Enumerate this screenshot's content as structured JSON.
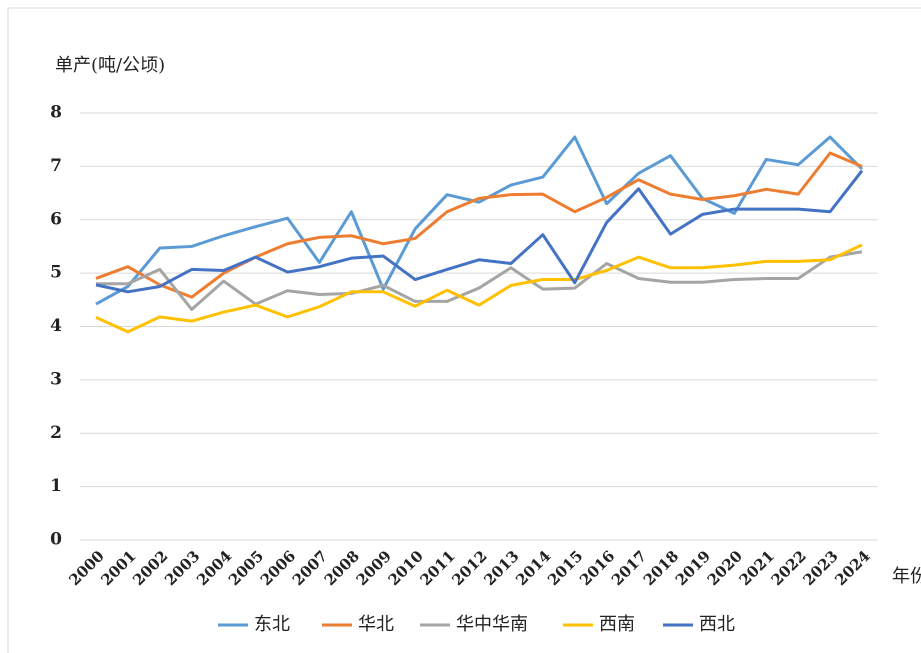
{
  "chart_data": {
    "type": "line",
    "y_label": "单产(吨/公顷)",
    "x_label": "年份",
    "categories": [
      "2000",
      "2001",
      "2002",
      "2003",
      "2004",
      "2005",
      "2006",
      "2007",
      "2008",
      "2009",
      "2010",
      "2011",
      "2012",
      "2013",
      "2014",
      "2015",
      "2016",
      "2017",
      "2018",
      "2019",
      "2020",
      "2021",
      "2022",
      "2023",
      "2024"
    ],
    "series": [
      {
        "name": "东北",
        "color": "#5b9bd5",
        "values": [
          4.42,
          4.75,
          5.47,
          5.5,
          5.7,
          5.87,
          6.03,
          5.2,
          6.15,
          4.7,
          5.83,
          6.47,
          6.33,
          6.65,
          6.8,
          7.55,
          6.3,
          6.87,
          7.2,
          6.4,
          6.12,
          7.13,
          7.03,
          7.55,
          6.95
        ]
      },
      {
        "name": "华北",
        "color": "#ed7d31",
        "values": [
          4.9,
          5.12,
          4.78,
          4.55,
          5.0,
          5.3,
          5.55,
          5.67,
          5.7,
          5.55,
          5.65,
          6.15,
          6.4,
          6.47,
          6.48,
          6.15,
          6.42,
          6.75,
          6.48,
          6.38,
          6.45,
          6.57,
          6.48,
          7.25,
          7.0
        ]
      },
      {
        "name": "华中华南",
        "color": "#a5a5a5",
        "values": [
          4.8,
          4.8,
          5.07,
          4.32,
          4.85,
          4.42,
          4.67,
          4.6,
          4.62,
          4.77,
          4.47,
          4.47,
          4.72,
          5.1,
          4.7,
          4.72,
          5.18,
          4.9,
          4.83,
          4.83,
          4.88,
          4.9,
          4.9,
          5.3,
          5.4
        ]
      },
      {
        "name": "西南",
        "color": "#ffc000",
        "values": [
          4.17,
          3.9,
          4.18,
          4.1,
          4.27,
          4.4,
          4.18,
          4.37,
          4.65,
          4.65,
          4.38,
          4.68,
          4.4,
          4.77,
          4.88,
          4.88,
          5.05,
          5.3,
          5.1,
          5.1,
          5.15,
          5.22,
          5.22,
          5.25,
          5.53
        ]
      },
      {
        "name": "西北",
        "color": "#4472c4",
        "values": [
          4.78,
          4.65,
          4.75,
          5.07,
          5.05,
          5.3,
          5.02,
          5.12,
          5.28,
          5.32,
          4.88,
          5.07,
          5.25,
          5.18,
          5.72,
          4.82,
          5.95,
          6.58,
          5.73,
          6.1,
          6.2,
          6.2,
          6.2,
          6.15,
          6.92
        ]
      }
    ],
    "ylim": [
      0,
      8
    ],
    "yticks": [
      0,
      1,
      2,
      3,
      4,
      5,
      6,
      7,
      8
    ],
    "grid": true
  }
}
